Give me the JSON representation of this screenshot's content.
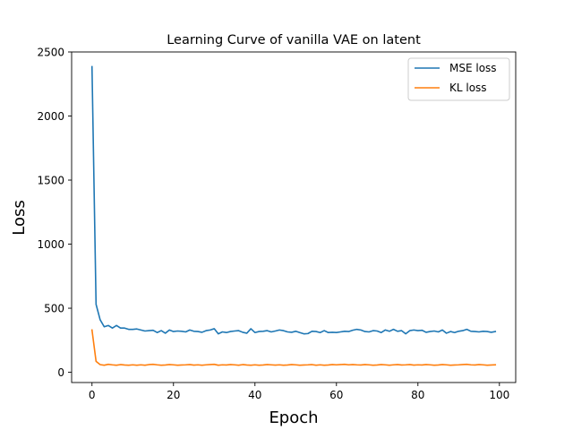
{
  "chart_data": {
    "type": "line",
    "title": "Learning Curve of vanilla VAE on latent",
    "xlabel": "Epoch",
    "ylabel": "Loss",
    "xlim": [
      -5,
      104
    ],
    "ylim": [
      -80,
      2500
    ],
    "x_ticks": [
      0,
      20,
      40,
      60,
      80,
      100
    ],
    "y_ticks": [
      0,
      500,
      1000,
      1500,
      2000,
      2500
    ],
    "grid": false,
    "legend_position": "top-right",
    "x": [
      0,
      1,
      2,
      3,
      4,
      5,
      6,
      7,
      8,
      9,
      10,
      11,
      12,
      13,
      14,
      15,
      16,
      17,
      18,
      19,
      20,
      21,
      22,
      23,
      24,
      25,
      26,
      27,
      28,
      29,
      30,
      31,
      32,
      33,
      34,
      35,
      36,
      37,
      38,
      39,
      40,
      41,
      42,
      43,
      44,
      45,
      46,
      47,
      48,
      49,
      50,
      51,
      52,
      53,
      54,
      55,
      56,
      57,
      58,
      59,
      60,
      61,
      62,
      63,
      64,
      65,
      66,
      67,
      68,
      69,
      70,
      71,
      72,
      73,
      74,
      75,
      76,
      77,
      78,
      79,
      80,
      81,
      82,
      83,
      84,
      85,
      86,
      87,
      88,
      89,
      90,
      91,
      92,
      93,
      94,
      95,
      96,
      97,
      98,
      99
    ],
    "series": [
      {
        "name": "MSE loss",
        "color": "#1f77b4",
        "values": [
          2385,
          530,
          410,
          355,
          365,
          345,
          365,
          345,
          345,
          335,
          335,
          338,
          330,
          322,
          325,
          328,
          310,
          325,
          305,
          330,
          318,
          322,
          320,
          315,
          330,
          320,
          318,
          312,
          325,
          330,
          340,
          300,
          315,
          310,
          318,
          322,
          325,
          312,
          305,
          340,
          310,
          318,
          320,
          325,
          315,
          322,
          330,
          325,
          315,
          312,
          320,
          310,
          300,
          302,
          320,
          318,
          310,
          325,
          310,
          312,
          310,
          315,
          320,
          318,
          328,
          335,
          330,
          318,
          315,
          325,
          322,
          310,
          330,
          320,
          335,
          320,
          325,
          300,
          325,
          330,
          325,
          328,
          312,
          318,
          322,
          315,
          330,
          305,
          318,
          310,
          320,
          325,
          335,
          320,
          318,
          315,
          320,
          318,
          312,
          318
        ]
      },
      {
        "name": "KL loss",
        "color": "#ff7f0e",
        "values": [
          330,
          85,
          60,
          55,
          62,
          58,
          55,
          60,
          57,
          55,
          58,
          55,
          58,
          55,
          60,
          62,
          58,
          55,
          57,
          60,
          58,
          55,
          57,
          58,
          60,
          56,
          58,
          55,
          58,
          60,
          62,
          55,
          58,
          57,
          60,
          58,
          55,
          60,
          57,
          55,
          58,
          55,
          57,
          60,
          58,
          56,
          58,
          55,
          57,
          60,
          58,
          55,
          57,
          58,
          60,
          55,
          58,
          55,
          57,
          60,
          58,
          60,
          62,
          58,
          60,
          58,
          57,
          60,
          58,
          55,
          57,
          60,
          58,
          55,
          58,
          60,
          57,
          58,
          60,
          56,
          58,
          57,
          60,
          58,
          55,
          57,
          60,
          58,
          55,
          57,
          58,
          60,
          62,
          58,
          57,
          60,
          58,
          55,
          57,
          58
        ]
      }
    ]
  }
}
